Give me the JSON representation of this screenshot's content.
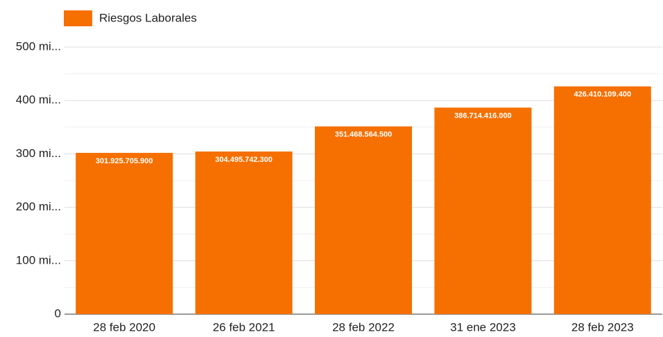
{
  "chart_data": {
    "type": "bar",
    "legend": "Riesgos Laborales",
    "color": "#f57000",
    "categories": [
      "28 feb 2020",
      "26 feb 2021",
      "28 feb 2022",
      "31 ene 2023",
      "28 feb 2023"
    ],
    "values": [
      301925705900,
      304495742300,
      351468564500,
      386714416000,
      426410109400
    ],
    "value_labels": [
      "301.925.705.900",
      "304.495.742.300",
      "351.468.564.500",
      "386.714.416.000",
      "426.410.109.400"
    ],
    "ylim": [
      0,
      500000000000
    ],
    "yticks": [
      0,
      {
        "value": 100000000000,
        "label": "100 mi..."
      },
      {
        "value": 200000000000,
        "label": "200 mi..."
      },
      {
        "value": 300000000000,
        "label": "300 mi..."
      },
      {
        "value": 400000000000,
        "label": "400 mi..."
      },
      {
        "value": 500000000000,
        "label": "500 mi..."
      }
    ],
    "minor_yticks": [
      50000000000,
      150000000000,
      250000000000,
      350000000000,
      450000000000
    ],
    "grid": true
  }
}
